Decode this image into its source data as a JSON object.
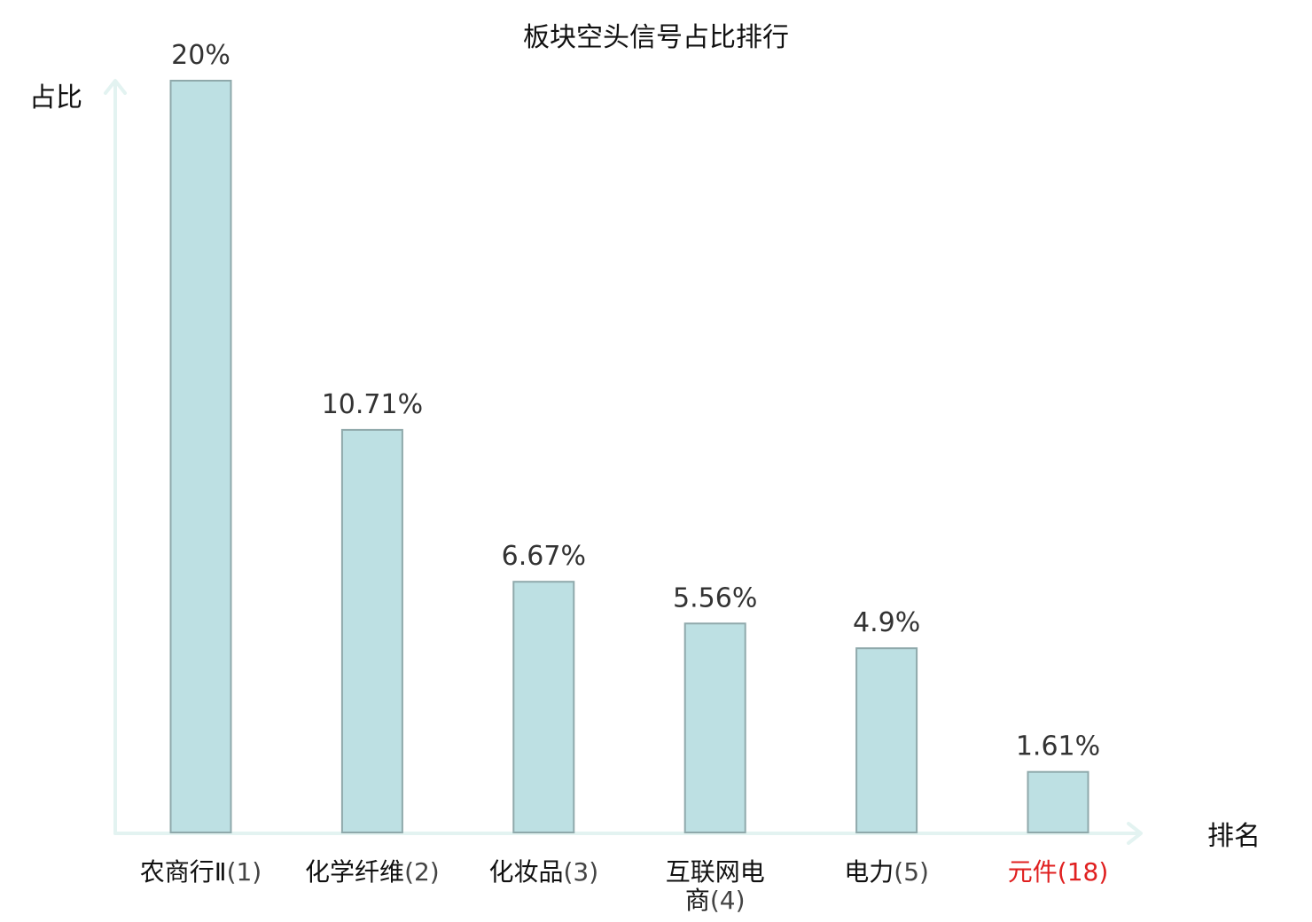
{
  "chart_data": {
    "type": "bar",
    "title": "板块空头信号占比排行",
    "ylabel": "占比",
    "xlabel": "排名",
    "ylim": [
      0,
      20
    ],
    "grid": false,
    "categories": [
      {
        "name": "农商行Ⅱ",
        "rank": "(1)"
      },
      {
        "name": "化学纤维",
        "rank": "(2)"
      },
      {
        "name": "化妆品",
        "rank": "(3)"
      },
      {
        "name": "互联网电商",
        "rank": "(4)"
      },
      {
        "name": "电力",
        "rank": "(5)"
      },
      {
        "name": "元件",
        "rank": "(18)"
      }
    ],
    "values": [
      20,
      10.71,
      6.67,
      5.56,
      4.9,
      1.61
    ],
    "value_labels": [
      "20%",
      "10.71%",
      "6.67%",
      "5.56%",
      "4.9%",
      "1.61%"
    ],
    "highlight_index": 5
  },
  "colors": {
    "bar_fill": "#bde0e3",
    "bar_stroke": "#8fa9ab",
    "axis": "#e3f3f1",
    "label": "#111111",
    "rank_label": "#444444",
    "highlight": "#e02020"
  }
}
